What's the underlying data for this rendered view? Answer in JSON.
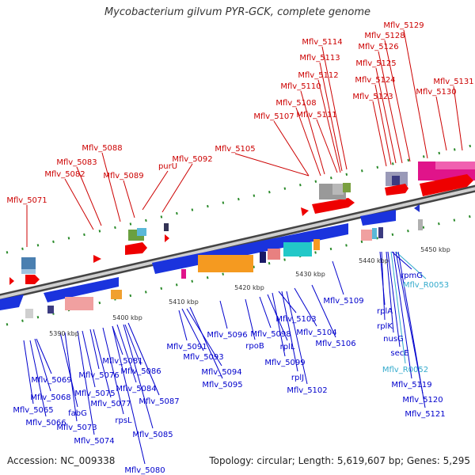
{
  "title": "Mycobacterium gilvum PYR-GCK, complete genome",
  "footer": {
    "accession": "Accession: NC_009338",
    "summary": "Topology: circular; Length: 5,619,607 bp; Genes: 5,295"
  },
  "scale_labels": [
    "5390 kbp",
    "5400 kbp",
    "5410 kbp",
    "5420 kbp",
    "5430 kbp",
    "5440 kbp",
    "5450 kbp"
  ],
  "top_labels": [
    "Mflv_5071",
    "Mflv_5082",
    "Mflv_5083",
    "Mflv_5088",
    "Mflv_5089",
    "purU",
    "Mflv_5092",
    "Mflv_5105",
    "Mflv_5107",
    "Mflv_5108",
    "Mflv_5110",
    "Mflv_5111",
    "Mflv_5112",
    "Mflv_5113",
    "Mflv_5114",
    "Mflv_5123",
    "Mflv_5124",
    "Mflv_5125",
    "Mflv_5126",
    "Mflv_5128",
    "Mflv_5129",
    "Mflv_5130",
    "Mflv_5131"
  ],
  "bottom_labels": [
    "Mflv_5065",
    "Mflv_5066",
    "Mflv_5068",
    "Mflv_5069",
    "fabG",
    "Mflv_5073",
    "Mflv_5074",
    "Mflv_5075",
    "Mflv_5076",
    "Mflv_5077",
    "rpsL",
    "Mflv_5080",
    "Mflv_5081",
    "Mflv_5084",
    "Mflv_5085",
    "Mflv_5086",
    "Mflv_5087",
    "Mflv_5091",
    "Mflv_5093",
    "Mflv_5094",
    "Mflv_5095",
    "Mflv_5096",
    "rpoB",
    "Mflv_5098",
    "rplL",
    "Mflv_5099",
    "Mflv_5103",
    "rplJ",
    "Mflv_5102",
    "Mflv_5104",
    "Mflv_5106",
    "Mflv_5109",
    "Mflv_R0053",
    "rpmG",
    "rplA",
    "rplK",
    "nusG",
    "secE",
    "Mflv_R0052",
    "Mflv_5119",
    "Mflv_5120",
    "Mflv_5121"
  ],
  "colors": {
    "plus_strand_label": "#cc0000",
    "minus_strand_label": "#0000cc",
    "rna_label": "#33aacc",
    "axis": "#888888"
  }
}
